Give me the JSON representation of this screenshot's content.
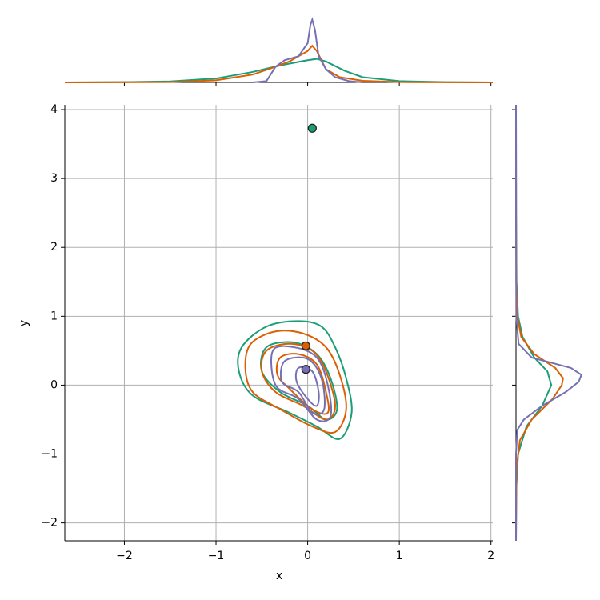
{
  "chart_data": {
    "type": "jointkde",
    "xlabel": "x",
    "ylabel": "y",
    "xlim": [
      -2.65,
      2.02
    ],
    "ylim": [
      -2.26,
      4.07
    ],
    "xticks": [
      {
        "value": -2,
        "label": "−2"
      },
      {
        "value": -1,
        "label": "−1"
      },
      0,
      1,
      2
    ],
    "yticks": [
      {
        "value": -2,
        "label": "−2"
      },
      {
        "value": -1,
        "label": "−1"
      },
      0,
      1,
      2,
      3,
      4
    ],
    "grid": true,
    "density_lim": [
      0,
      2.6
    ],
    "series": [
      {
        "color": "#1b9e77",
        "point": {
          "x": 0.05,
          "y": 3.73
        },
        "contours": [
          {
            "x": [
              -0.72,
              -0.45,
              -0.1,
              0.15,
              0.3,
              0.42,
              0.48,
              0.35,
              0.1,
              -0.2,
              -0.6,
              -0.75
            ],
            "y": [
              0.55,
              0.85,
              0.93,
              0.85,
              0.55,
              0.1,
              -0.4,
              -0.78,
              -0.6,
              -0.4,
              -0.15,
              0.2
            ]
          },
          {
            "x": [
              -0.45,
              -0.15,
              0.1,
              0.25,
              0.32,
              0.2,
              0,
              -0.3,
              -0.5
            ],
            "y": [
              0.55,
              0.62,
              0.45,
              0.1,
              -0.35,
              -0.5,
              -0.3,
              -0.1,
              0.2
            ]
          }
        ],
        "x_density": {
          "x": [
            -2.65,
            -2,
            -1.5,
            -1,
            -0.6,
            -0.3,
            0,
            0.1,
            0.2,
            0.4,
            0.6,
            1,
            1.5,
            2.02
          ],
          "density": [
            0,
            0.01,
            0.04,
            0.15,
            0.4,
            0.65,
            0.85,
            0.9,
            0.8,
            0.45,
            0.2,
            0.05,
            0.01,
            0
          ]
        },
        "y_density": {
          "y": [
            -2.26,
            -1.5,
            -1,
            -0.6,
            -0.3,
            0,
            0.2,
            0.4,
            0.7,
            1,
            1.5,
            2.5,
            4.07
          ],
          "density": [
            0,
            0.01,
            0.08,
            0.4,
            1.0,
            1.35,
            1.2,
            0.7,
            0.25,
            0.08,
            0.02,
            0.005,
            0
          ]
        }
      },
      {
        "color": "#d95f02",
        "point": {
          "x": -0.02,
          "y": 0.57
        },
        "contours": [
          {
            "x": [
              -0.62,
              -0.35,
              -0.05,
              0.2,
              0.35,
              0.42,
              0.3,
              0.05,
              -0.3,
              -0.6,
              -0.68
            ],
            "y": [
              0.6,
              0.78,
              0.75,
              0.55,
              0.15,
              -0.35,
              -0.68,
              -0.6,
              -0.35,
              -0.1,
              0.25
            ]
          },
          {
            "x": [
              -0.45,
              -0.2,
              0.05,
              0.2,
              0.3,
              0.2,
              -0.05,
              -0.35,
              -0.5
            ],
            "y": [
              0.5,
              0.6,
              0.5,
              0.2,
              -0.3,
              -0.5,
              -0.3,
              -0.1,
              0.2
            ]
          },
          {
            "x": [
              -0.3,
              -0.1,
              0.1,
              0.2,
              0.22,
              0.05,
              -0.2,
              -0.33
            ],
            "y": [
              0.4,
              0.45,
              0.3,
              -0.1,
              -0.4,
              -0.35,
              -0.05,
              0.15
            ]
          }
        ],
        "x_density": {
          "x": [
            -2.65,
            -1.5,
            -1,
            -0.6,
            -0.35,
            -0.2,
            0,
            0.05,
            0.1,
            0.2,
            0.35,
            0.6,
            1,
            2.02
          ],
          "density": [
            0,
            0.01,
            0.08,
            0.3,
            0.6,
            0.8,
            1.2,
            1.4,
            1.2,
            0.5,
            0.2,
            0.06,
            0.01,
            0
          ]
        },
        "y_density": {
          "y": [
            -2.26,
            -1.2,
            -0.8,
            -0.5,
            -0.2,
            0,
            0.1,
            0.25,
            0.45,
            0.7,
            1,
            1.5,
            4.07
          ],
          "density": [
            0,
            0.02,
            0.15,
            0.6,
            1.4,
            1.75,
            1.8,
            1.5,
            0.7,
            0.2,
            0.05,
            0.01,
            0
          ]
        }
      },
      {
        "color": "#7570b3",
        "point": {
          "x": -0.02,
          "y": 0.23
        },
        "contours": [
          {
            "x": [
              -0.38,
              -0.15,
              0.1,
              0.22,
              0.25,
              0.1,
              -0.1,
              -0.35
            ],
            "y": [
              0.5,
              0.55,
              0.4,
              0,
              -0.45,
              -0.5,
              -0.2,
              0
            ]
          },
          {
            "x": [
              -0.25,
              0,
              0.15,
              0.18,
              0.05,
              -0.1,
              -0.28
            ],
            "y": [
              0.35,
              0.38,
              0.1,
              -0.35,
              -0.4,
              -0.1,
              0.05
            ]
          },
          {
            "x": [
              -0.1,
              0.05,
              0.12,
              0.1,
              0,
              -0.12
            ],
            "y": [
              0.25,
              0.2,
              -0.1,
              -0.3,
              -0.2,
              0.05
            ]
          }
        ],
        "x_density": {
          "x": [
            -0.6,
            -0.45,
            -0.35,
            -0.25,
            -0.1,
            0,
            0.03,
            0.05,
            0.08,
            0.12,
            0.2,
            0.3,
            0.45,
            0.6
          ],
          "density": [
            0,
            0.05,
            0.6,
            0.85,
            1.0,
            1.5,
            2.2,
            2.4,
            2.0,
            1.0,
            0.5,
            0.2,
            0.05,
            0
          ]
        },
        "y_density": {
          "y": [
            -2.26,
            -1,
            -0.65,
            -0.5,
            -0.3,
            -0.1,
            0.05,
            0.15,
            0.25,
            0.4,
            0.6,
            1,
            2.5,
            4.07
          ],
          "density": [
            0,
            0,
            0.05,
            0.3,
            1.0,
            1.9,
            2.4,
            2.5,
            2.1,
            0.6,
            0.1,
            0.01,
            0,
            0
          ]
        }
      }
    ]
  }
}
